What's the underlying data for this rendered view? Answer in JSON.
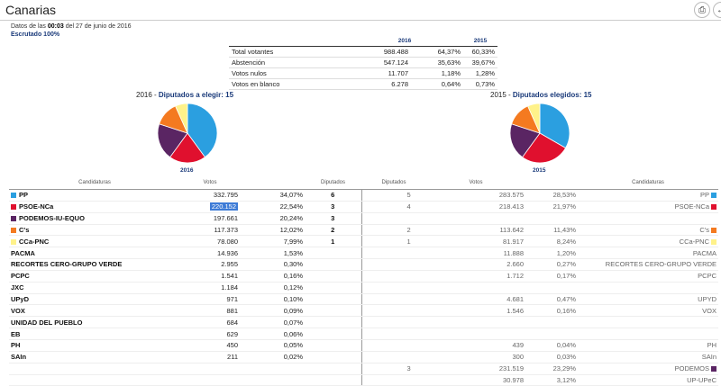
{
  "header": {
    "title": "Canarias",
    "print_icon": "printer-icon",
    "back_icon": "back-arrow-icon"
  },
  "meta": {
    "prefix": "Datos de las",
    "time": "00:03",
    "date": "del 27 de junio de 2016",
    "scrutiny": "Escrutado 100%"
  },
  "summary": {
    "headers": {
      "y2016": "2016",
      "y2015": "2015"
    },
    "rows": [
      {
        "label": "Total votantes",
        "v2016": "988.488",
        "p2016": "64,37%",
        "p2015": "60,33%"
      },
      {
        "label": "Abstención",
        "v2016": "547.124",
        "p2016": "35,63%",
        "p2015": "39,67%"
      },
      {
        "label": "Votos nulos",
        "v2016": "11.707",
        "p2016": "1,18%",
        "p2015": "1,28%"
      },
      {
        "label": "Votos en blanco",
        "v2016": "6.278",
        "p2016": "0,64%",
        "p2015": "0,73%"
      }
    ]
  },
  "pies": {
    "left": {
      "year": "2016",
      "title": "Diputados a elegir:",
      "total": "15",
      "label": "2016",
      "slices": [
        {
          "party": "PP",
          "seats": 6,
          "color": "#2b9fe0"
        },
        {
          "party": "PSOE-NCa",
          "seats": 3,
          "color": "#e0102e"
        },
        {
          "party": "PODEMOS-IU-EQUO",
          "seats": 3,
          "color": "#5a2563"
        },
        {
          "party": "C's",
          "seats": 2,
          "color": "#f47a20"
        },
        {
          "party": "CCa-PNC",
          "seats": 1,
          "color": "#fff28a"
        }
      ]
    },
    "right": {
      "year": "2015",
      "title": "Diputados elegidos:",
      "total": "15",
      "label": "2015",
      "slices": [
        {
          "party": "PP",
          "seats": 5,
          "color": "#2b9fe0"
        },
        {
          "party": "PSOE-NCa",
          "seats": 4,
          "color": "#e0102e"
        },
        {
          "party": "PODEMOS",
          "seats": 3,
          "color": "#5a2563"
        },
        {
          "party": "C's",
          "seats": 2,
          "color": "#f47a20"
        },
        {
          "party": "CCa-PNC",
          "seats": 1,
          "color": "#fff28a"
        }
      ]
    }
  },
  "results": {
    "headers": {
      "cand": "Candidaturas",
      "votos": "Votos",
      "dip": "Diputados",
      "dip15": "Diputados",
      "votos15": "Votos",
      "cand15": "Candidaturas"
    },
    "rows": [
      {
        "name": "PP",
        "color": "#2b9fe0",
        "votes": "332.795",
        "pct": "34,07%",
        "seats": "6",
        "seats15": "5",
        "votes15": "283.575",
        "pct15": "28,53%",
        "name15": "PP",
        "color15": "#2b9fe0"
      },
      {
        "name": "PSOE-NCa",
        "color": "#e0102e",
        "votes": "220.152",
        "pct": "22,54%",
        "seats": "3",
        "seats15": "4",
        "votes15": "218.413",
        "pct15": "21,97%",
        "name15": "PSOE-NCa",
        "color15": "#e0102e",
        "highlight": true
      },
      {
        "name": "PODEMOS-IU-EQUO",
        "color": "#5a2563",
        "votes": "197.661",
        "pct": "20,24%",
        "seats": "3",
        "seats15": "",
        "votes15": "",
        "pct15": "",
        "name15": "",
        "color15": ""
      },
      {
        "name": "C's",
        "color": "#f47a20",
        "votes": "117.373",
        "pct": "12,02%",
        "seats": "2",
        "seats15": "2",
        "votes15": "113.642",
        "pct15": "11,43%",
        "name15": "C's",
        "color15": "#f47a20"
      },
      {
        "name": "CCa-PNC",
        "color": "#fff28a",
        "votes": "78.080",
        "pct": "7,99%",
        "seats": "1",
        "seats15": "1",
        "votes15": "81.917",
        "pct15": "8,24%",
        "name15": "CCa-PNC",
        "color15": "#fff28a"
      },
      {
        "name": "PACMA",
        "color": "",
        "votes": "14.936",
        "pct": "1,53%",
        "seats": "",
        "seats15": "",
        "votes15": "11.888",
        "pct15": "1,20%",
        "name15": "PACMA",
        "color15": ""
      },
      {
        "name": "RECORTES CERO-GRUPO VERDE",
        "color": "",
        "votes": "2.955",
        "pct": "0,30%",
        "seats": "",
        "seats15": "",
        "votes15": "2.660",
        "pct15": "0,27%",
        "name15": "RECORTES CERO-GRUPO VERDE",
        "color15": ""
      },
      {
        "name": "PCPC",
        "color": "",
        "votes": "1.541",
        "pct": "0,16%",
        "seats": "",
        "seats15": "",
        "votes15": "1.712",
        "pct15": "0,17%",
        "name15": "PCPC",
        "color15": ""
      },
      {
        "name": "JXC",
        "color": "",
        "votes": "1.184",
        "pct": "0,12%",
        "seats": "",
        "seats15": "",
        "votes15": "",
        "pct15": "",
        "name15": "",
        "color15": ""
      },
      {
        "name": "UPyD",
        "color": "",
        "votes": "971",
        "pct": "0,10%",
        "seats": "",
        "seats15": "",
        "votes15": "4.681",
        "pct15": "0,47%",
        "name15": "UPYD",
        "color15": ""
      },
      {
        "name": "VOX",
        "color": "",
        "votes": "881",
        "pct": "0,09%",
        "seats": "",
        "seats15": "",
        "votes15": "1.546",
        "pct15": "0,16%",
        "name15": "VOX",
        "color15": ""
      },
      {
        "name": "UNIDAD DEL PUEBLO",
        "color": "",
        "votes": "684",
        "pct": "0,07%",
        "seats": "",
        "seats15": "",
        "votes15": "",
        "pct15": "",
        "name15": "",
        "color15": ""
      },
      {
        "name": "EB",
        "color": "",
        "votes": "629",
        "pct": "0,06%",
        "seats": "",
        "seats15": "",
        "votes15": "",
        "pct15": "",
        "name15": "",
        "color15": ""
      },
      {
        "name": "PH",
        "color": "",
        "votes": "450",
        "pct": "0,05%",
        "seats": "",
        "seats15": "",
        "votes15": "439",
        "pct15": "0,04%",
        "name15": "PH",
        "color15": ""
      },
      {
        "name": "SAIn",
        "color": "",
        "votes": "211",
        "pct": "0,02%",
        "seats": "",
        "seats15": "",
        "votes15": "300",
        "pct15": "0,03%",
        "name15": "SAIn",
        "color15": ""
      },
      {
        "name": "",
        "color": "",
        "votes": "",
        "pct": "",
        "seats": "",
        "seats15": "3",
        "votes15": "231.519",
        "pct15": "23,29%",
        "name15": "PODEMOS",
        "color15": "#5a2563"
      },
      {
        "name": "",
        "color": "",
        "votes": "",
        "pct": "",
        "seats": "",
        "seats15": "",
        "votes15": "30.978",
        "pct15": "3,12%",
        "name15": "UP-UPeC",
        "color15": ""
      }
    ]
  }
}
